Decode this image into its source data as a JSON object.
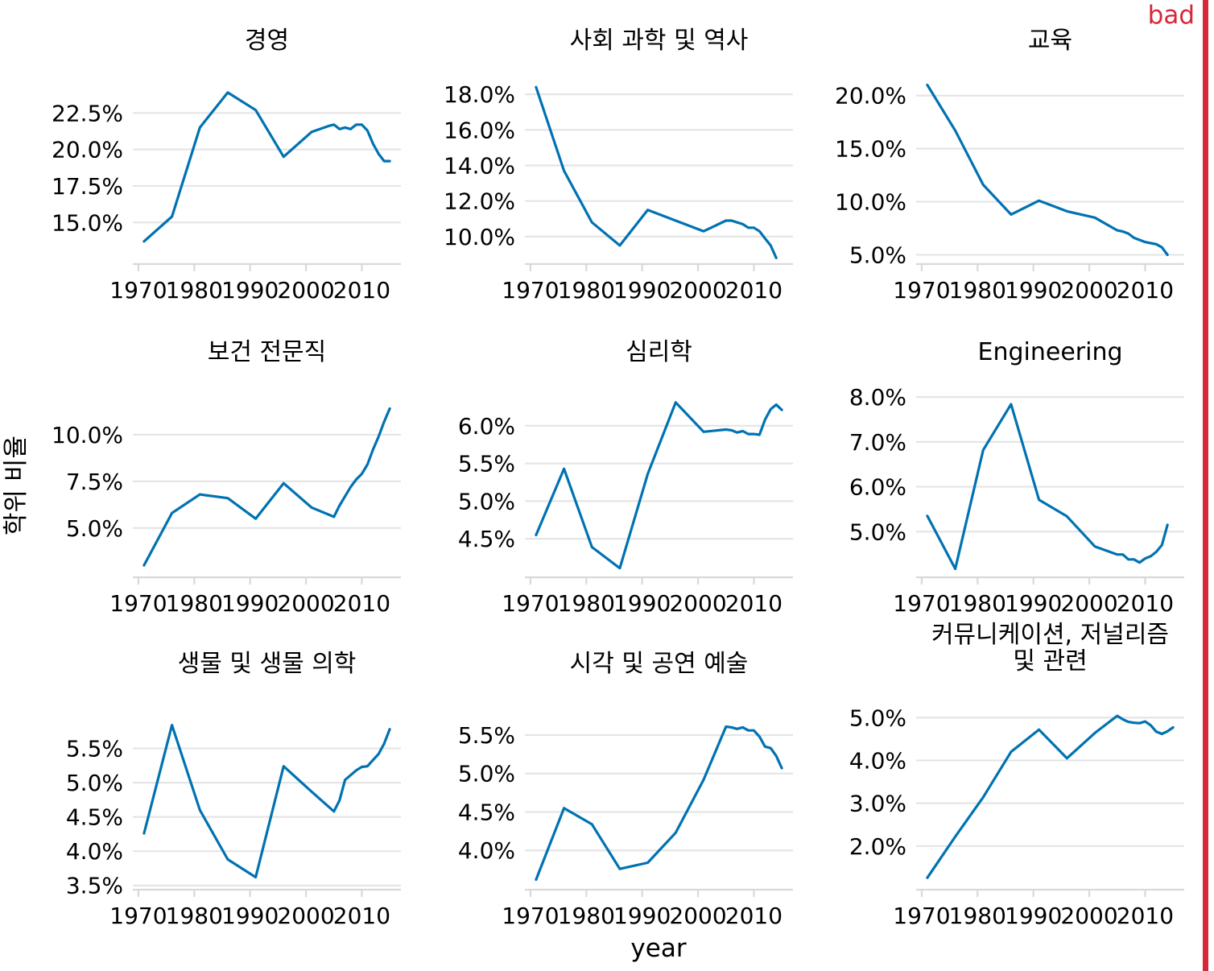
{
  "badge": "bad",
  "colors": {
    "line": "#0072b2",
    "badge": "#d62839",
    "grid": "#e5e5e5",
    "background": "#ffffff"
  },
  "figure": {
    "xlabel": "year",
    "ylabel": "학위 비율"
  },
  "chart_data": [
    {
      "type": "line",
      "title": "경영",
      "x": [
        1971,
        1976,
        1981,
        1986,
        1991,
        1996,
        2001,
        2004,
        2005,
        2006,
        2007,
        2008,
        2009,
        2010,
        2011,
        2012,
        2013,
        2014,
        2015
      ],
      "y": [
        13.7,
        15.4,
        21.5,
        23.9,
        22.7,
        19.5,
        21.2,
        21.6,
        21.7,
        21.4,
        21.5,
        21.4,
        21.7,
        21.7,
        21.3,
        20.4,
        19.7,
        19.2,
        19.2
      ],
      "ylim": [
        12.2,
        25.0
      ],
      "yticks": [
        15.0,
        17.5,
        20.0,
        22.5
      ],
      "ytick_labels": [
        "15.0%",
        "17.5%",
        "20.0%",
        "22.5%"
      ]
    },
    {
      "type": "line",
      "title": "사회 과학 및 역사",
      "x": [
        1971,
        1976,
        1981,
        1986,
        1991,
        1996,
        2001,
        2005,
        2006,
        2007,
        2008,
        2009,
        2010,
        2011,
        2012,
        2013,
        2014
      ],
      "y": [
        18.4,
        13.7,
        10.8,
        9.5,
        11.5,
        10.9,
        10.3,
        10.9,
        10.9,
        10.8,
        10.7,
        10.5,
        10.5,
        10.3,
        9.9,
        9.5,
        8.8
      ],
      "ylim": [
        8.5,
        19.0
      ],
      "yticks": [
        10.0,
        12.0,
        14.0,
        16.0,
        18.0
      ],
      "ytick_labels": [
        "10.0%",
        "12.0%",
        "14.0%",
        "16.0%",
        "18.0%"
      ]
    },
    {
      "type": "line",
      "title": "교육",
      "x": [
        1971,
        1976,
        1981,
        1986,
        1991,
        1996,
        2001,
        2005,
        2006,
        2007,
        2008,
        2009,
        2010,
        2011,
        2012,
        2013,
        2014
      ],
      "y": [
        21.0,
        16.7,
        11.6,
        8.8,
        10.1,
        9.1,
        8.5,
        7.3,
        7.2,
        7.0,
        6.6,
        6.4,
        6.2,
        6.1,
        6.0,
        5.7,
        5.0
      ],
      "ylim": [
        4.2,
        21.8
      ],
      "yticks": [
        5.0,
        10.0,
        15.0,
        20.0
      ],
      "ytick_labels": [
        "5.0%",
        "10.0%",
        "15.0%",
        "20.0%"
      ]
    },
    {
      "type": "line",
      "title": "보건 전문직",
      "x": [
        1971,
        1976,
        1981,
        1986,
        1991,
        1996,
        2001,
        2005,
        2006,
        2007,
        2008,
        2009,
        2010,
        2011,
        2012,
        2013,
        2014,
        2015
      ],
      "y": [
        3.0,
        5.8,
        6.8,
        6.6,
        5.5,
        7.4,
        6.1,
        5.6,
        6.2,
        6.7,
        7.2,
        7.6,
        7.9,
        8.4,
        9.2,
        9.9,
        10.7,
        11.4
      ],
      "ylim": [
        2.4,
        12.5
      ],
      "yticks": [
        5.0,
        7.5,
        10.0
      ],
      "ytick_labels": [
        "5.0%",
        "7.5%",
        "10.0%"
      ]
    },
    {
      "type": "line",
      "title": "심리학",
      "x": [
        1971,
        1976,
        1981,
        1986,
        1991,
        1996,
        2001,
        2005,
        2006,
        2007,
        2008,
        2009,
        2010,
        2011,
        2012,
        2013,
        2014,
        2015
      ],
      "y": [
        4.55,
        5.43,
        4.39,
        4.11,
        5.36,
        6.31,
        5.92,
        5.95,
        5.94,
        5.91,
        5.93,
        5.89,
        5.89,
        5.88,
        6.08,
        6.22,
        6.28,
        6.21
      ],
      "ylim": [
        4.0,
        6.5
      ],
      "yticks": [
        4.5,
        5.0,
        5.5,
        6.0
      ],
      "ytick_labels": [
        "4.5%",
        "5.0%",
        "5.5%",
        "6.0%"
      ]
    },
    {
      "type": "line",
      "title": "Engineering",
      "x": [
        1971,
        1976,
        1981,
        1986,
        1991,
        1996,
        2001,
        2005,
        2006,
        2007,
        2008,
        2009,
        2010,
        2011,
        2012,
        2013,
        2014
      ],
      "y": [
        5.35,
        4.17,
        6.82,
        7.84,
        5.71,
        5.34,
        4.67,
        4.49,
        4.49,
        4.38,
        4.38,
        4.31,
        4.4,
        4.45,
        4.55,
        4.7,
        5.15
      ],
      "ylim": [
        4.0,
        8.2
      ],
      "yticks": [
        5.0,
        6.0,
        7.0,
        8.0
      ],
      "ytick_labels": [
        "5.0%",
        "6.0%",
        "7.0%",
        "8.0%"
      ]
    },
    {
      "type": "line",
      "title": "생물 및 생물 의학",
      "x": [
        1971,
        1976,
        1981,
        1986,
        1991,
        1996,
        2001,
        2005,
        2006,
        2007,
        2008,
        2009,
        2010,
        2011,
        2012,
        2013,
        2014,
        2015
      ],
      "y": [
        4.26,
        5.84,
        4.6,
        3.88,
        3.62,
        5.24,
        4.87,
        4.58,
        4.74,
        5.04,
        5.11,
        5.18,
        5.23,
        5.24,
        5.33,
        5.42,
        5.57,
        5.78
      ],
      "ylim": [
        3.45,
        6.2
      ],
      "yticks": [
        3.5,
        4.0,
        4.5,
        5.0,
        5.5
      ],
      "ytick_labels": [
        "3.5%",
        "4.0%",
        "4.5%",
        "5.0%",
        "5.5%"
      ]
    },
    {
      "type": "line",
      "title": "시각 및 공연 예술",
      "x": [
        1971,
        1976,
        1981,
        1986,
        1991,
        1996,
        2001,
        2005,
        2006,
        2007,
        2008,
        2009,
        2010,
        2011,
        2012,
        2013,
        2014,
        2015
      ],
      "y": [
        3.62,
        4.55,
        4.34,
        3.76,
        3.84,
        4.23,
        4.92,
        5.61,
        5.6,
        5.58,
        5.6,
        5.56,
        5.56,
        5.48,
        5.35,
        5.33,
        5.23,
        5.07
      ],
      "ylim": [
        3.5,
        5.95
      ],
      "yticks": [
        4.0,
        4.5,
        5.0,
        5.5
      ],
      "ytick_labels": [
        "4.0%",
        "4.5%",
        "5.0%",
        "5.5%"
      ]
    },
    {
      "type": "line",
      "title": "커뮤니케이션, 저널리즘\n및 관련",
      "x": [
        1971,
        1976,
        1981,
        1986,
        1991,
        1996,
        2001,
        2005,
        2006,
        2007,
        2008,
        2009,
        2010,
        2011,
        2012,
        2013,
        2014,
        2015
      ],
      "y": [
        1.26,
        2.22,
        3.14,
        4.2,
        4.72,
        4.05,
        4.64,
        5.04,
        4.96,
        4.9,
        4.88,
        4.87,
        4.91,
        4.82,
        4.67,
        4.62,
        4.68,
        4.77
      ],
      "ylim": [
        1.0,
        5.4
      ],
      "yticks": [
        2.0,
        3.0,
        4.0,
        5.0
      ],
      "ytick_labels": [
        "2.0%",
        "3.0%",
        "4.0%",
        "5.0%"
      ]
    }
  ],
  "x_axis": {
    "ticks": [
      1970,
      1980,
      1990,
      2000,
      2010
    ],
    "tick_labels": [
      "1970",
      "1980",
      "1990",
      "2000",
      "2010"
    ],
    "xlim": [
      1969,
      2017
    ]
  }
}
